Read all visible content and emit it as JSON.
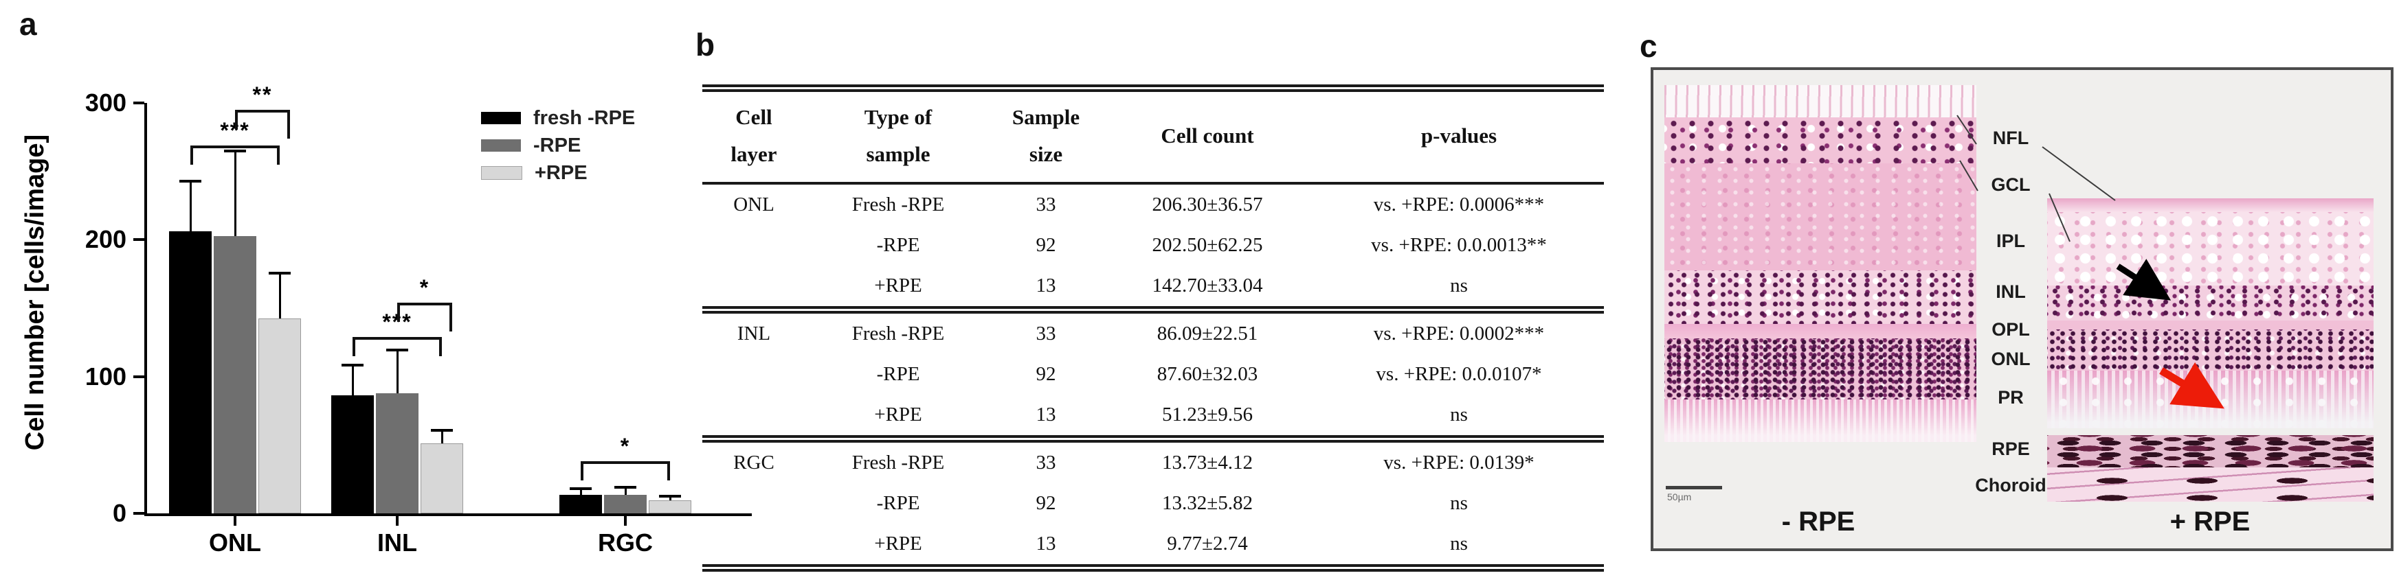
{
  "panel_a": {
    "letter": "a",
    "ylabel": "Cell number [cells/image]"
  },
  "chart_data": {
    "type": "bar",
    "title": "",
    "xlabel": "",
    "ylabel": "Cell number [cells/image]",
    "categories": [
      "ONL",
      "INL",
      "RGC"
    ],
    "series": [
      {
        "name": "fresh -RPE",
        "color": "#000000",
        "values": [
          206.3,
          86.09,
          13.73
        ],
        "sd": [
          36.57,
          22.51,
          4.12
        ]
      },
      {
        "name": "-RPE",
        "color": "#6f6f6f",
        "values": [
          202.5,
          87.6,
          13.32
        ],
        "sd": [
          62.25,
          32.03,
          5.82
        ]
      },
      {
        "name": "+RPE",
        "color": "#d7d7d7",
        "values": [
          142.7,
          51.23,
          9.77
        ],
        "sd": [
          33.04,
          9.56,
          2.74
        ]
      }
    ],
    "ylim": [
      0,
      300
    ],
    "yticks": [
      0,
      100,
      200,
      300
    ],
    "error_bars": "sd-upper-only",
    "grid": false,
    "legend_position": "upper-right",
    "significance": [
      {
        "category": "ONL",
        "from": 0,
        "to": 2,
        "label": "***",
        "y": 269
      },
      {
        "category": "ONL",
        "from": 1,
        "to": 2,
        "label": "**",
        "y": 295
      },
      {
        "category": "INL",
        "from": 0,
        "to": 2,
        "label": "***",
        "y": 129
      },
      {
        "category": "INL",
        "from": 1,
        "to": 2,
        "label": "*",
        "y": 154
      },
      {
        "category": "RGC",
        "from": 0,
        "to": 2,
        "label": "*",
        "y": 38
      }
    ]
  },
  "panel_b": {
    "letter": "b",
    "columns": [
      "Cell\nlayer",
      "Type of\nsample",
      "Sample\nsize",
      "Cell count",
      "p-values"
    ],
    "sections": [
      {
        "layer": "ONL",
        "rows": [
          {
            "type": "Fresh -RPE",
            "n": "33",
            "count": "206.30±36.57",
            "p": "vs. +RPE: 0.0006***"
          },
          {
            "type": "-RPE",
            "n": "92",
            "count": "202.50±62.25",
            "p": "vs. +RPE: 0.0.0013**"
          },
          {
            "type": "+RPE",
            "n": "13",
            "count": "142.70±33.04",
            "p": "ns"
          }
        ]
      },
      {
        "layer": "INL",
        "rows": [
          {
            "type": "Fresh -RPE",
            "n": "33",
            "count": "86.09±22.51",
            "p": "vs. +RPE: 0.0002***"
          },
          {
            "type": "-RPE",
            "n": "92",
            "count": "87.60±32.03",
            "p": "vs. +RPE: 0.0.0107*"
          },
          {
            "type": "+RPE",
            "n": "13",
            "count": "51.23±9.56",
            "p": "ns"
          }
        ]
      },
      {
        "layer": "RGC",
        "rows": [
          {
            "type": "Fresh -RPE",
            "n": "33",
            "count": "13.73±4.12",
            "p": "vs. +RPE: 0.0139*"
          },
          {
            "type": "-RPE",
            "n": "92",
            "count": "13.32±5.82",
            "p": "ns"
          },
          {
            "type": "+RPE",
            "n": "13",
            "count": "9.77±2.74",
            "p": "ns"
          }
        ]
      }
    ]
  },
  "panel_c": {
    "letter": "c",
    "layer_labels": [
      "NFL",
      "GCL",
      "IPL",
      "INL",
      "OPL",
      "ONL",
      "PR",
      "RPE",
      "Choroid"
    ],
    "bottom_left_label": "- RPE",
    "bottom_right_label": "+ RPE",
    "scale_bar_text": "50µm",
    "arrow_colors": {
      "black_arrow": "#000000",
      "red_arrow": "#ed1c09"
    }
  }
}
